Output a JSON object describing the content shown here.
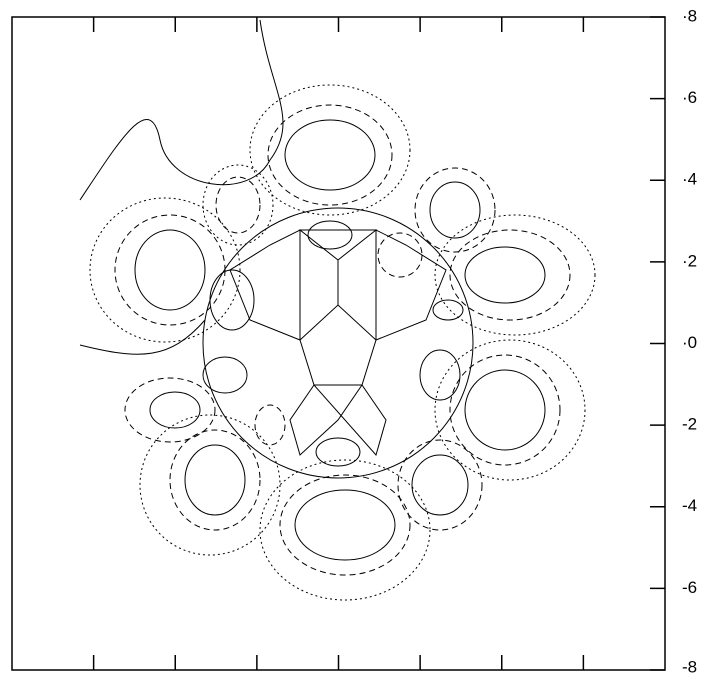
{
  "chart_data": {
    "type": "contour",
    "xlim": [
      -8,
      8
    ],
    "xticks": [
      -6,
      -4,
      -2,
      0,
      2,
      4,
      6
    ],
    "ylim": [
      -8,
      8
    ],
    "yticks": [
      {
        "value": 8,
        "label": "·8"
      },
      {
        "value": 6,
        "label": "·6"
      },
      {
        "value": 4,
        "label": "·4"
      },
      {
        "value": 2,
        "label": "·2"
      },
      {
        "value": 0,
        "label": "·0"
      },
      {
        "value": -2,
        "label": "-2"
      },
      {
        "value": -4,
        "label": "-4"
      },
      {
        "value": -6,
        "label": "-6"
      },
      {
        "value": -8,
        "label": "-8"
      }
    ],
    "color": "#000000"
  }
}
